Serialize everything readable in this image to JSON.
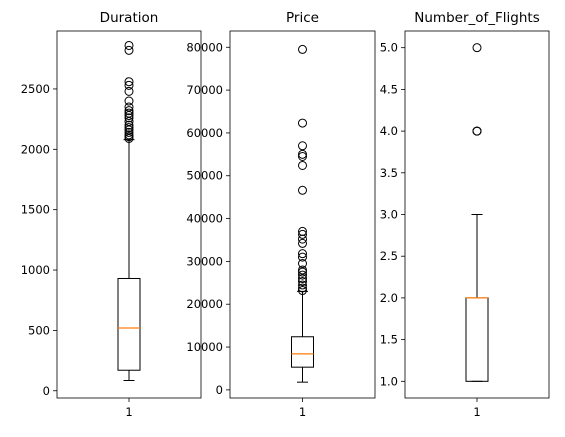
{
  "chart_data": [
    {
      "type": "boxplot",
      "title": "Duration",
      "categories": [
        "1"
      ],
      "ylim": [
        -60,
        2980
      ],
      "yticks": [
        0,
        500,
        1000,
        1500,
        2000,
        2500
      ],
      "stats": {
        "whisker_low": 85,
        "q1": 170,
        "median": 520,
        "q3": 930,
        "whisker_high": 2080
      },
      "outliers": [
        2090,
        2105,
        2120,
        2140,
        2160,
        2180,
        2200,
        2230,
        2260,
        2280,
        2300,
        2320,
        2350,
        2400,
        2480,
        2530,
        2560,
        2820,
        2860
      ]
    },
    {
      "type": "boxplot",
      "title": "Price",
      "categories": [
        "1"
      ],
      "ylim": [
        -1900,
        83800
      ],
      "yticks": [
        0,
        10000,
        20000,
        30000,
        40000,
        50000,
        60000,
        70000,
        80000
      ],
      "stats": {
        "whisker_low": 1800,
        "q1": 5300,
        "median": 8400,
        "q3": 12400,
        "whisker_high": 23000
      },
      "outliers": [
        23200,
        23800,
        24500,
        25300,
        26000,
        26800,
        27500,
        28000,
        29500,
        31000,
        31800,
        34200,
        35200,
        36300,
        37000,
        46600,
        52400,
        54500,
        55000,
        57000,
        62300,
        79500
      ]
    },
    {
      "type": "boxplot",
      "title": "Number_of_Flights",
      "categories": [
        "1"
      ],
      "ylim": [
        0.8,
        5.2
      ],
      "yticks": [
        "1.0",
        "1.5",
        "2.0",
        "2.5",
        "3.0",
        "3.5",
        "4.0",
        "4.5",
        "5.0"
      ],
      "stats": {
        "whisker_low": 1.0,
        "q1": 1.0,
        "median": 2.0,
        "q3": 2.0,
        "whisker_high": 3.0
      },
      "outliers": [
        4.0,
        4.0,
        4.0,
        5.0
      ]
    }
  ],
  "colors": {
    "box": "#000000",
    "median": "#ff7f0e",
    "background": "#ffffff"
  }
}
